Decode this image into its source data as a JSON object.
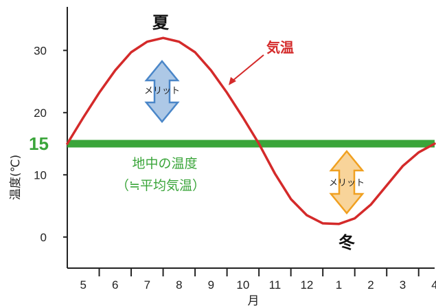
{
  "chart_data": {
    "type": "line",
    "xlabel": "月",
    "ylabel": "温度(℃)",
    "categories": [
      "5",
      "6",
      "7",
      "8",
      "9",
      "10",
      "11",
      "12",
      "1",
      "2",
      "3",
      "4"
    ],
    "yticks": [
      0,
      10,
      20,
      30
    ],
    "ylim": [
      -5,
      37
    ],
    "series": [
      {
        "name": "気温",
        "color": "#d42a2a",
        "x": [
          4.5,
          5.0,
          5.5,
          6.0,
          6.5,
          7.0,
          7.5,
          8.0,
          8.5,
          9.0,
          9.5,
          10.0,
          10.5,
          11.0,
          11.5,
          12.0,
          12.5,
          13.0,
          13.5,
          14.0,
          14.5,
          15.0,
          15.5,
          16.0
        ],
        "values": [
          15.0,
          19.2,
          23.2,
          26.8,
          29.7,
          31.4,
          32.0,
          31.4,
          29.7,
          26.8,
          23.2,
          19.2,
          15.0,
          10.2,
          6.1,
          3.5,
          2.2,
          2.1,
          3.0,
          5.2,
          8.3,
          11.4,
          13.6,
          15.0
        ]
      }
    ],
    "reference_line": {
      "value": 15,
      "value_label": "15",
      "color": "#3aa53a",
      "label_line1": "地中の温度",
      "label_line2": "（≒平均気温）"
    },
    "annotations": {
      "summer": "夏",
      "winter": "冬",
      "merit_label": "メリット",
      "merit_summer_color": "#4a86c8",
      "merit_winter_color": "#f0a020"
    }
  }
}
